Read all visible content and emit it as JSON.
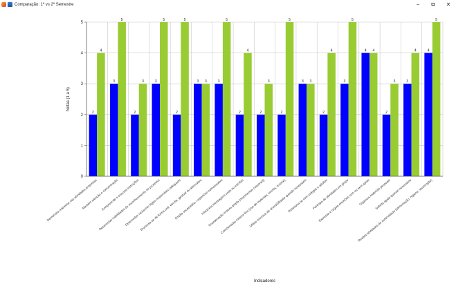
{
  "window": {
    "title": "Comparação: 1º vs 2º Semestre",
    "minimize_glyph": "−",
    "restore_glyph": "⧉",
    "close_glyph": "✕"
  },
  "chart_data": {
    "type": "bar",
    "title": "",
    "xlabel": "Indicadores",
    "ylabel": "Notas (1 a 5)",
    "ylim": [
      0,
      5
    ],
    "yticks": [
      0,
      1,
      2,
      3,
      4,
      5
    ],
    "grid": true,
    "legend": "none",
    "categories": [
      "Demonstra interesse nas atividades propostas",
      "Mantém atenção e concentração",
      "Compreende e executa instruções",
      "Desenvolve habilidades de reconhecimento no processo",
      "Desenvolve raciocínio lógico-matemático adequado",
      "Expressa-se de forma oral, escrita, gestual ou alternativa",
      "Amplia vocabulário / repertório comunicativo",
      "Interpreta mensagens orais ou escritas",
      "Coordenação motora ampla (movimentos corporais)",
      "Coordenação motora fina (uso de materiais, escrita, recorte)",
      "Utiliza recursos de acessibilidade quando necessário",
      "Relaciona-se com colegas e adultos",
      "Participa de atividades em grupo",
      "Expressa e regula emoções com ou sem apoio",
      "Organiza materiais pessoais",
      "Solicita ajuda quando necessário",
      "Realiza atividades de autocuidado (alimentação, higiene, locomoção)"
    ],
    "series": [
      {
        "name": "",
        "color": "#0000ff",
        "values": [
          2,
          3,
          2,
          3,
          2,
          3,
          3,
          2,
          2,
          2,
          3,
          2,
          3,
          4,
          2,
          3,
          4
        ]
      },
      {
        "name": "",
        "color": "#99cc33",
        "values": [
          4,
          5,
          3,
          5,
          5,
          3,
          5,
          4,
          3,
          5,
          3,
          4,
          5,
          4,
          3,
          4,
          5
        ]
      }
    ]
  }
}
